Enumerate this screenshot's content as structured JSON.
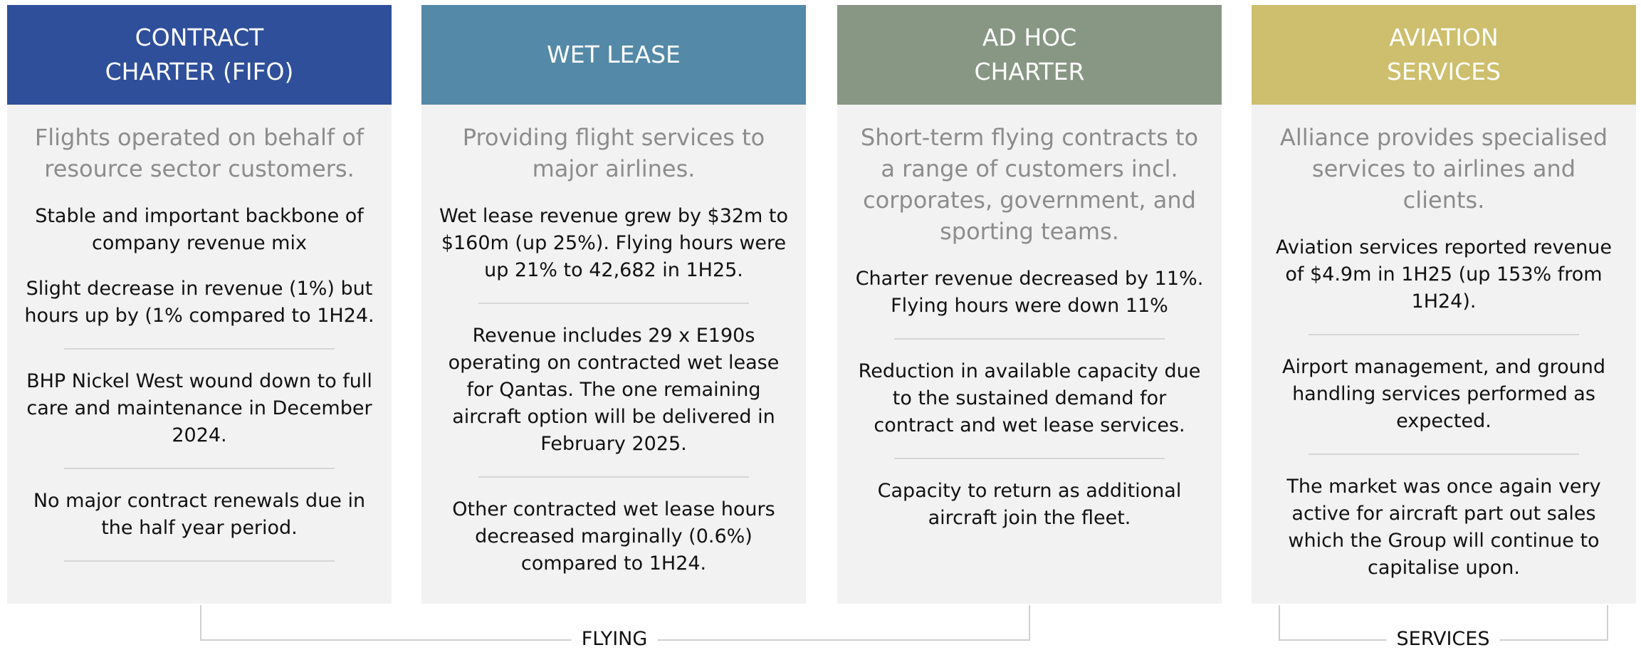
{
  "columns": [
    {
      "title_lines": [
        "CONTRACT",
        "CHARTER (FIFO)"
      ],
      "subtitle": "Flights operated on behalf of resource sector customers.",
      "items": [
        "Stable and important backbone of company revenue mix",
        "Slight decrease in revenue (1%) but hours up by (1% compared to 1H24.",
        "BHP Nickel West wound down to full care and maintenance in December 2024.",
        "No major contract renewals due in the half year period."
      ]
    },
    {
      "title_lines": [
        "WET LEASE"
      ],
      "subtitle": "Providing flight services to major airlines.",
      "items": [
        "Wet lease revenue grew by $32m to $160m (up 25%). Flying hours were up 21% to 42,682 in 1H25.",
        "Revenue includes 29 x E190s operating on contracted wet lease for Qantas. The one remaining aircraft option will be delivered in February 2025.",
        "Other contracted wet lease hours decreased marginally (0.6%) compared to 1H24."
      ]
    },
    {
      "title_lines": [
        "AD HOC",
        "CHARTER"
      ],
      "subtitle": "Short-term flying contracts to a range of customers incl. corporates, government, and sporting teams.",
      "items": [
        "Charter revenue decreased by 11%. Flying hours were down 11%",
        "Reduction in available capacity due to the sustained demand for contract and wet lease services.",
        "Capacity to return as additional aircraft join the fleet."
      ]
    },
    {
      "title_lines": [
        "AVIATION",
        "SERVICES"
      ],
      "subtitle": "Alliance provides specialised services to airlines and clients.",
      "items": [
        "Aviation services reported revenue of $4.9m in 1H25 (up 153% from 1H24).",
        "Airport management, and ground handling services performed as expected.",
        "The market was once again very active for aircraft part out sales which the Group will continue to capitalise upon."
      ]
    }
  ],
  "groups": [
    "FLYING",
    "SERVICES"
  ]
}
